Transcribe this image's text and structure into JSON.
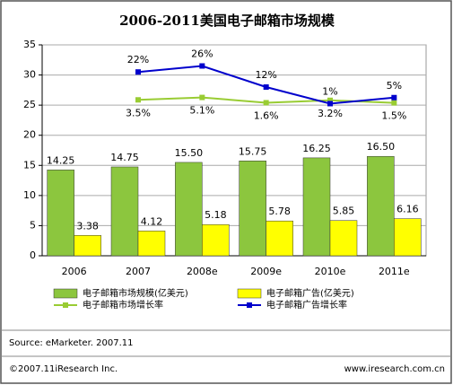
{
  "chart_data": {
    "type": "bar",
    "title": "2006-2011美国电子邮箱市场规模",
    "categories": [
      "2006",
      "2007",
      "2008e",
      "2009e",
      "2010e",
      "2011e"
    ],
    "ylim": [
      0,
      35
    ],
    "yticks": [
      0,
      5,
      10,
      15,
      20,
      25,
      30,
      35
    ],
    "grid": true,
    "y2lim": [
      -100,
      40
    ],
    "series": [
      {
        "name": "电子邮箱市场规模(亿美元)",
        "type": "bar",
        "color": "#8cc63e",
        "values": [
          14.25,
          14.75,
          15.5,
          15.75,
          16.25,
          16.5
        ],
        "value_labels": [
          "14.25",
          "14.75",
          "15.50",
          "15.75",
          "16.25",
          "16.50"
        ]
      },
      {
        "name": "电子邮箱广告(亿美元)",
        "type": "bar",
        "color": "#ffff00",
        "values": [
          3.38,
          4.12,
          5.18,
          5.78,
          5.85,
          6.16
        ]
      },
      {
        "name": "电子邮箱市场增长率",
        "type": "line",
        "axis": "y2",
        "color": "#99cc33",
        "values": [
          null,
          3.5,
          5.1,
          1.6,
          3.2,
          1.5
        ],
        "value_labels": [
          null,
          "3.5%",
          "5.1%",
          "1.6%",
          "3.2%",
          "1.5%"
        ]
      },
      {
        "name": "电子邮箱广告增长率",
        "type": "line",
        "axis": "y2",
        "color": "#0000cc",
        "values": [
          null,
          22,
          26,
          12,
          1,
          5
        ],
        "value_labels": [
          null,
          "22%",
          "26%",
          "12%",
          "1%",
          "5%"
        ]
      }
    ]
  },
  "source": "Source: eMarketer. 2007.11",
  "footer": {
    "left": "©2007.11iResearch Inc.",
    "right": "www.iresearch.com.cn"
  }
}
